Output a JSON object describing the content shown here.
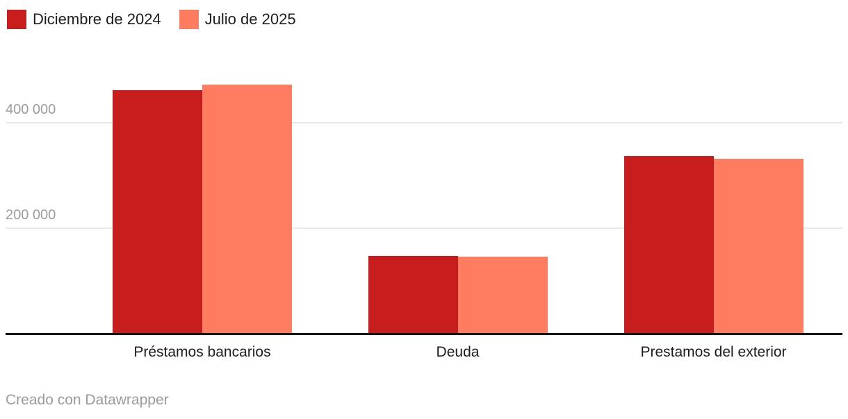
{
  "chart_data": {
    "type": "bar",
    "title": "",
    "xlabel": "",
    "ylabel": "",
    "categories": [
      "Préstamos bancarios",
      "Deuda",
      "Prestamos del exterior"
    ],
    "series": [
      {
        "name": "Diciembre de 2024",
        "color": "#c71e1d",
        "values": [
          462000,
          147000,
          336000
        ]
      },
      {
        "name": "Julio de 2025",
        "color": "#ff7c60",
        "values": [
          472000,
          145000,
          332000
        ]
      }
    ],
    "ylim": [
      0,
      500000
    ],
    "yticks": [
      {
        "value": 400000,
        "label": "400 000"
      },
      {
        "value": 200000,
        "label": "200 000"
      }
    ],
    "grid": true,
    "legend_position": "top-left",
    "colors": {
      "grid": "#e7e7e7",
      "axis_line": "#171717",
      "tick_text": "#9c9c9c",
      "label_text": "#1d1d1d"
    }
  },
  "footer": {
    "credit": "Creado con Datawrapper"
  }
}
